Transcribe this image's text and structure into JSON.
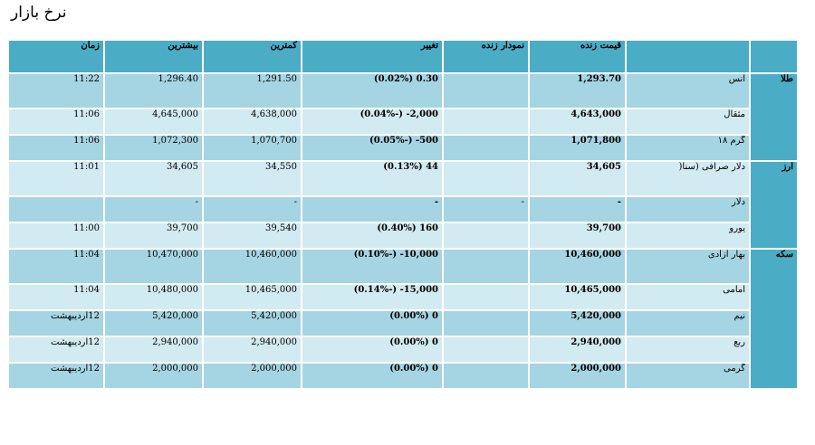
{
  "page": {
    "title": "نرخ بازار"
  },
  "headers": {
    "time": "زمان",
    "high": "بیشترین",
    "low": "کمترین",
    "change": "تغییر",
    "chart": "نمودار زنده",
    "price": "قیمت زنده",
    "name": "",
    "group": ""
  },
  "groups": [
    {
      "label": "طلا",
      "rows": [
        {
          "name": "انس",
          "price": "1,293.70",
          "chart": "",
          "change": "0.30 (0.02%)",
          "low": "1,291.50",
          "high": "1,296.40",
          "time": "11:22"
        },
        {
          "name": "مثقال",
          "price": "4,643,000",
          "chart": "",
          "change": "2,000- (-0.04%)",
          "low": "4,638,000",
          "high": "4,645,000",
          "time": "11:06"
        },
        {
          "name": "گرم ۱۸",
          "price": "1,071,800",
          "chart": "",
          "change": "500- (-0.05%)",
          "low": "1,070,700",
          "high": "1,072,300",
          "time": "11:06"
        }
      ]
    },
    {
      "label": "ارز",
      "rows": [
        {
          "name": "دلار صرافی (سنا(",
          "price": "34,605",
          "chart": "",
          "change": "44 (0.13%)",
          "low": "34,550",
          "high": "34,605",
          "time": "11:01"
        },
        {
          "name": "دلار",
          "price": "-",
          "chart": "-",
          "change": "-",
          "low": "-",
          "high": "-",
          "time": ""
        },
        {
          "name": "یورو",
          "price": "39,700",
          "chart": "",
          "change": "160 (0.40%)",
          "low": "39,540",
          "high": "39,700",
          "time": "11:00"
        }
      ]
    },
    {
      "label": "سکه",
      "rows": [
        {
          "name": "بهار آزادی",
          "price": "10,460,000",
          "chart": "",
          "change": "10,000- (-0.10%)",
          "low": "10,460,000",
          "high": "10,470,000",
          "time": "11:04"
        },
        {
          "name": "امامی",
          "price": "10,465,000",
          "chart": "",
          "change": "15,000- (-0.14%)",
          "low": "10,465,000",
          "high": "10,480,000",
          "time": "11:04"
        },
        {
          "name": "نیم",
          "price": "5,420,000",
          "chart": "",
          "change": "0 (0.00%)",
          "low": "5,420,000",
          "high": "5,420,000",
          "time": "12اردیبهشت"
        },
        {
          "name": "ربع",
          "price": "2,940,000",
          "chart": "",
          "change": "0 (0.00%)",
          "low": "2,940,000",
          "high": "2,940,000",
          "time": "12اردیبهشت"
        },
        {
          "name": "گرمی",
          "price": "2,000,000",
          "chart": "",
          "change": "0 (0.00%)",
          "low": "2,000,000",
          "high": "2,000,000",
          "time": "12اردیبهشت"
        }
      ]
    }
  ],
  "colors": {
    "header": "#4BACC6",
    "row_dark": "#A5D5E2",
    "row_light": "#D2EAF1"
  }
}
